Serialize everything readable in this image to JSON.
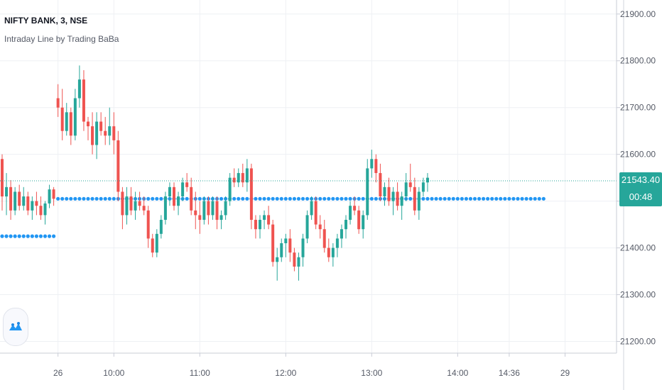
{
  "header": {
    "symbol": "NIFTY BANK, 3, NSE",
    "indicator": "Intraday Line by Trading BaBa"
  },
  "price_badge": {
    "price": "21543.40",
    "countdown": "00:48",
    "color": "#26a69a"
  },
  "colors": {
    "up": "#26a69a",
    "down": "#ef5350",
    "dots": "#2196f3",
    "grid": "#eef0f4",
    "axis": "#555a66"
  },
  "logo": {
    "icon": "tradingview-logo-icon"
  },
  "chart_data": {
    "type": "candlestick",
    "title": "NIFTY BANK, 3, NSE",
    "ylim": [
      21175,
      21930
    ],
    "y_ticks": [
      21200,
      21300,
      21400,
      21500,
      21600,
      21700,
      21800,
      21900
    ],
    "y_tick_labels": [
      "21200.00",
      "21300.00",
      "21400.00",
      "21500.00",
      "21600.00",
      "21700.00",
      "21800.00",
      "21900.00"
    ],
    "x_ticks": [
      {
        "label": "26",
        "bar": 13
      },
      {
        "label": "10:00",
        "bar": 26
      },
      {
        "label": "11:00",
        "bar": 46
      },
      {
        "label": "12:00",
        "bar": 66
      },
      {
        "label": "13:00",
        "bar": 86
      },
      {
        "label": "14:00",
        "bar": 106
      },
      {
        "label": "14:36",
        "bar": 118
      },
      {
        "label": "29",
        "bar": 131
      }
    ],
    "last_price": 21543.4,
    "intraday_line": [
      {
        "start": 0,
        "end": 13,
        "value": 21425
      },
      {
        "start": 13,
        "end": 127,
        "value": 21505
      }
    ],
    "candles": [
      [
        21590,
        21600,
        21480,
        21510
      ],
      [
        21510,
        21560,
        21470,
        21530
      ],
      [
        21530,
        21545,
        21460,
        21480
      ],
      [
        21480,
        21530,
        21470,
        21520
      ],
      [
        21520,
        21535,
        21480,
        21490
      ],
      [
        21490,
        21530,
        21480,
        21510
      ],
      [
        21510,
        21520,
        21470,
        21480
      ],
      [
        21480,
        21510,
        21460,
        21500
      ],
      [
        21500,
        21520,
        21470,
        21490
      ],
      [
        21490,
        21510,
        21460,
        21470
      ],
      [
        21470,
        21500,
        21450,
        21495
      ],
      [
        21495,
        21535,
        21485,
        21525
      ],
      [
        21525,
        21530,
        21490,
        21505
      ],
      [
        21720,
        21750,
        21680,
        21700
      ],
      [
        21700,
        21740,
        21630,
        21650
      ],
      [
        21650,
        21710,
        21640,
        21690
      ],
      [
        21690,
        21700,
        21620,
        21640
      ],
      [
        21640,
        21740,
        21630,
        21720
      ],
      [
        21720,
        21790,
        21700,
        21760
      ],
      [
        21760,
        21780,
        21650,
        21670
      ],
      [
        21670,
        21680,
        21630,
        21660
      ],
      [
        21660,
        21690,
        21600,
        21620
      ],
      [
        21620,
        21690,
        21590,
        21670
      ],
      [
        21670,
        21690,
        21640,
        21650
      ],
      [
        21650,
        21680,
        21620,
        21640
      ],
      [
        21640,
        21700,
        21620,
        21660
      ],
      [
        21660,
        21690,
        21600,
        21630
      ],
      [
        21630,
        21650,
        21500,
        21520
      ],
      [
        21520,
        21530,
        21440,
        21470
      ],
      [
        21470,
        21530,
        21450,
        21510
      ],
      [
        21510,
        21530,
        21470,
        21480
      ],
      [
        21480,
        21520,
        21460,
        21500
      ],
      [
        21500,
        21520,
        21480,
        21490
      ],
      [
        21490,
        21510,
        21470,
        21480
      ],
      [
        21480,
        21490,
        21400,
        21420
      ],
      [
        21420,
        21430,
        21380,
        21390
      ],
      [
        21390,
        21440,
        21380,
        21430
      ],
      [
        21430,
        21470,
        21420,
        21460
      ],
      [
        21460,
        21520,
        21450,
        21510
      ],
      [
        21510,
        21540,
        21490,
        21530
      ],
      [
        21530,
        21540,
        21480,
        21490
      ],
      [
        21490,
        21520,
        21470,
        21510
      ],
      [
        21510,
        21550,
        21500,
        21540
      ],
      [
        21540,
        21560,
        21520,
        21530
      ],
      [
        21530,
        21550,
        21470,
        21480
      ],
      [
        21480,
        21520,
        21440,
        21470
      ],
      [
        21470,
        21500,
        21430,
        21460
      ],
      [
        21460,
        21510,
        21450,
        21500
      ],
      [
        21500,
        21510,
        21450,
        21470
      ],
      [
        21470,
        21510,
        21460,
        21500
      ],
      [
        21500,
        21510,
        21440,
        21460
      ],
      [
        21460,
        21480,
        21440,
        21470
      ],
      [
        21470,
        21510,
        21460,
        21500
      ],
      [
        21500,
        21560,
        21490,
        21550
      ],
      [
        21550,
        21570,
        21530,
        21540
      ],
      [
        21540,
        21570,
        21530,
        21560
      ],
      [
        21560,
        21580,
        21530,
        21540
      ],
      [
        21540,
        21590,
        21520,
        21570
      ],
      [
        21570,
        21580,
        21440,
        21460
      ],
      [
        21460,
        21470,
        21420,
        21440
      ],
      [
        21440,
        21470,
        21420,
        21460
      ],
      [
        21460,
        21480,
        21440,
        21470
      ],
      [
        21470,
        21490,
        21440,
        21450
      ],
      [
        21450,
        21460,
        21360,
        21370
      ],
      [
        21370,
        21400,
        21330,
        21380
      ],
      [
        21380,
        21420,
        21370,
        21410
      ],
      [
        21410,
        21430,
        21380,
        21420
      ],
      [
        21420,
        21440,
        21370,
        21390
      ],
      [
        21390,
        21400,
        21350,
        21360
      ],
      [
        21360,
        21390,
        21330,
        21380
      ],
      [
        21380,
        21430,
        21360,
        21420
      ],
      [
        21420,
        21480,
        21410,
        21470
      ],
      [
        21470,
        21510,
        21460,
        21500
      ],
      [
        21500,
        21510,
        21440,
        21450
      ],
      [
        21450,
        21470,
        21420,
        21440
      ],
      [
        21440,
        21460,
        21390,
        21400
      ],
      [
        21400,
        21420,
        21370,
        21380
      ],
      [
        21380,
        21410,
        21360,
        21400
      ],
      [
        21400,
        21430,
        21380,
        21420
      ],
      [
        21420,
        21450,
        21400,
        21440
      ],
      [
        21440,
        21470,
        21420,
        21460
      ],
      [
        21460,
        21500,
        21450,
        21490
      ],
      [
        21490,
        21510,
        21470,
        21480
      ],
      [
        21480,
        21490,
        21430,
        21440
      ],
      [
        21440,
        21480,
        21420,
        21470
      ],
      [
        21470,
        21590,
        21460,
        21570
      ],
      [
        21570,
        21610,
        21550,
        21590
      ],
      [
        21590,
        21600,
        21540,
        21560
      ],
      [
        21560,
        21580,
        21500,
        21510
      ],
      [
        21510,
        21540,
        21490,
        21530
      ],
      [
        21530,
        21550,
        21490,
        21500
      ],
      [
        21500,
        21530,
        21470,
        21520
      ],
      [
        21520,
        21540,
        21480,
        21490
      ],
      [
        21490,
        21520,
        21460,
        21510
      ],
      [
        21510,
        21560,
        21500,
        21540
      ],
      [
        21540,
        21580,
        21520,
        21530
      ],
      [
        21530,
        21550,
        21470,
        21480
      ],
      [
        21480,
        21530,
        21460,
        21520
      ],
      [
        21520,
        21550,
        21510,
        21540
      ],
      [
        21540,
        21560,
        21520,
        21550
      ]
    ]
  }
}
